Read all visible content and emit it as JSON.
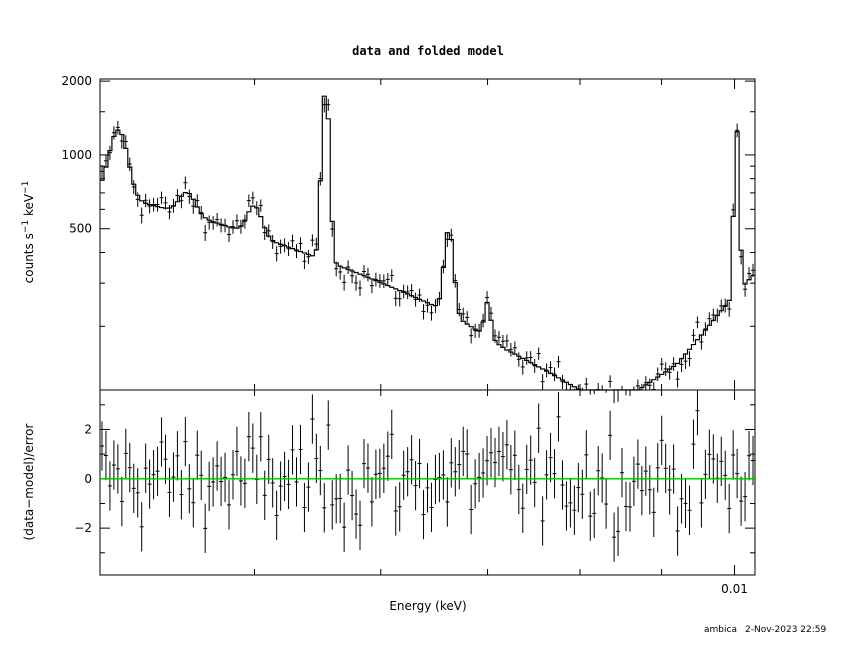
{
  "chart_data": [
    {
      "panel": "top",
      "type": "line",
      "title": "data and folded model",
      "ylabel_main": "counts s",
      "ylabel_exp1": "−1",
      "ylabel_unit": " keV",
      "ylabel_exp2": "−1",
      "ylim": [
        110,
        2040
      ],
      "yticks": [
        {
          "value": 500,
          "label": "500"
        },
        {
          "value": 1000,
          "label": "1000"
        },
        {
          "value": 2000,
          "label": "2000"
        }
      ],
      "x_range": [
        0.004,
        0.0103
      ],
      "x_scale": "log",
      "grid": false,
      "series": [
        {
          "role": "data",
          "style": "crosses",
          "color": "#000000"
        },
        {
          "role": "folded model",
          "style": "step",
          "color": "#000000"
        }
      ],
      "model": {
        "continuum": [
          [
            0.004,
            700
          ],
          [
            0.0046,
            560
          ],
          [
            0.005,
            470
          ],
          [
            0.0058,
            330
          ],
          [
            0.0066,
            230
          ],
          [
            0.0072,
            160
          ],
          [
            0.008,
            110
          ],
          [
            0.0086,
            105
          ],
          [
            0.0092,
            140
          ],
          [
            0.0098,
            230
          ],
          [
            0.0103,
            330
          ]
        ],
        "lines": [
          {
            "center": 0.004108,
            "amp": 590,
            "width": 5e-05
          },
          {
            "center": 0.004537,
            "amp": 130,
            "width": 5e-05
          },
          {
            "center": 0.005,
            "amp": 150,
            "width": 5e-05
          },
          {
            "center": 0.00554,
            "amp": 1470,
            "width": 2.6e-05
          },
          {
            "center": 0.00662,
            "amp": 270,
            "width": 4e-05
          },
          {
            "center": 0.007,
            "amp": 70,
            "width": 3e-05
          },
          {
            "center": 0.01003,
            "amp": 1000,
            "width": 3.2e-05
          }
        ]
      }
    },
    {
      "panel": "bottom",
      "type": "scatter",
      "ylabel": "(data−model)/error",
      "xlabel": "Energy (keV)",
      "ylim": [
        -3.9,
        3.6
      ],
      "yticks": [
        {
          "value": -2,
          "label": "−2"
        },
        {
          "value": 0,
          "label": "0"
        },
        {
          "value": 2,
          "label": "2"
        }
      ],
      "xticks_labeled": [
        {
          "value": 0.01,
          "label": "0.01"
        }
      ],
      "x_range": [
        0.004,
        0.0103
      ],
      "x_scale": "log",
      "zero_line_color": "#00c000",
      "grid": false
    }
  ],
  "footer": {
    "user": "ambica",
    "timestamp": "2-Nov-2023 22:59"
  }
}
